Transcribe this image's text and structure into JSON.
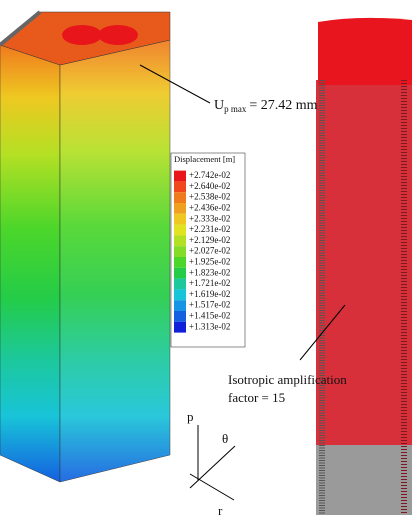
{
  "annotation": {
    "symbol": "U",
    "subscript": "p max",
    "text": "= 27.42 mm"
  },
  "legend": {
    "title": "Displacement [m]",
    "items": [
      {
        "label": "+2.742e-02",
        "color": "#e8161a"
      },
      {
        "label": "+2.640e-02",
        "color": "#f0481c"
      },
      {
        "label": "+2.538e-02",
        "color": "#f07a1e"
      },
      {
        "label": "+2.436e-02",
        "color": "#f0a020"
      },
      {
        "label": "+2.333e-02",
        "color": "#eec821"
      },
      {
        "label": "+2.231e-02",
        "color": "#e2e222"
      },
      {
        "label": "+2.129e-02",
        "color": "#b4e024"
      },
      {
        "label": "+2.027e-02",
        "color": "#84dc26"
      },
      {
        "label": "+1.925e-02",
        "color": "#4cd62a"
      },
      {
        "label": "+1.823e-02",
        "color": "#24cc48"
      },
      {
        "label": "+1.721e-02",
        "color": "#1cc89c"
      },
      {
        "label": "+1.619e-02",
        "color": "#18c4d8"
      },
      {
        "label": "+1.517e-02",
        "color": "#1894e4"
      },
      {
        "label": "+1.415e-02",
        "color": "#1460e0"
      },
      {
        "label": "+1.313e-02",
        "color": "#1020d8"
      }
    ]
  },
  "amplification": {
    "line1": "Isotropic amplification",
    "line2": "factor = 15"
  },
  "axes": {
    "p": "p",
    "theta": "θ",
    "r": "r"
  }
}
